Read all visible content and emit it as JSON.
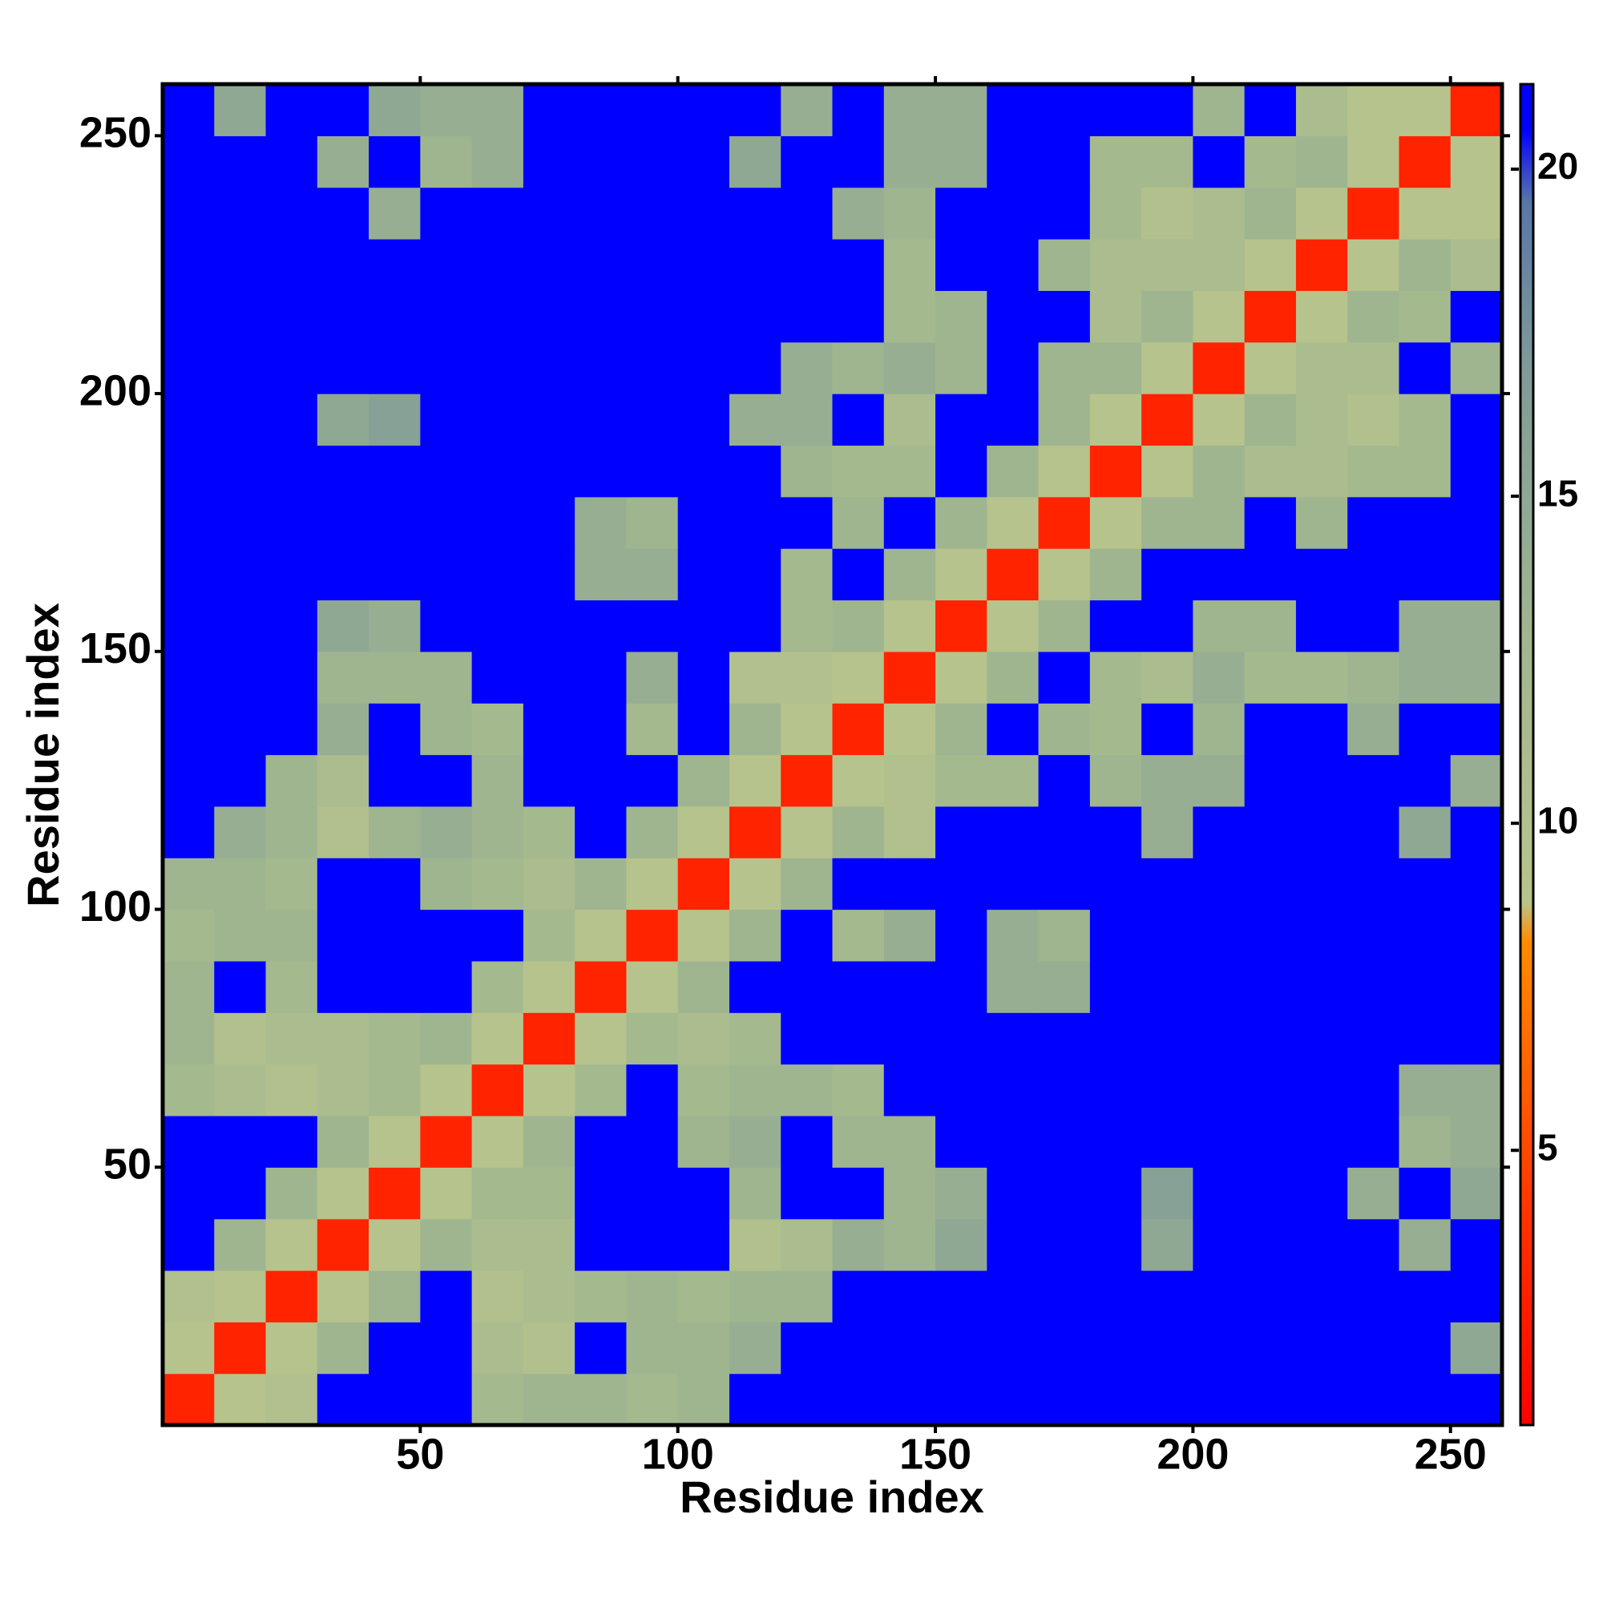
{
  "chart_data": {
    "type": "heatmap",
    "x_label": "Residue index",
    "y_label": "Residue index",
    "xlim": [
      0,
      260
    ],
    "ylim": [
      0,
      260
    ],
    "xticks": [
      50,
      100,
      150,
      200,
      250
    ],
    "yticks": [
      50,
      100,
      150,
      200,
      250
    ],
    "colorbar": {
      "clim": [
        0.8,
        21.3
      ],
      "ticks": [
        5,
        10,
        15,
        20
      ],
      "colorscale": [
        {
          "value": 0.8,
          "color": "#ff0000"
        },
        {
          "value": 4,
          "color": "#ff3300"
        },
        {
          "value": 8.2,
          "color": "#ff8c00"
        },
        {
          "value": 8.8,
          "color": "#b8c48c"
        },
        {
          "value": 13,
          "color": "#9fb590"
        },
        {
          "value": 17,
          "color": "#7f9a98"
        },
        {
          "value": 19.5,
          "color": "#5a76a8"
        },
        {
          "value": 20.6,
          "color": "#0000ff"
        },
        {
          "value": 21.3,
          "color": "#0000ff"
        }
      ]
    },
    "z": [
      [
        3,
        9,
        10,
        21,
        21,
        21,
        12,
        13,
        13,
        12,
        13,
        21,
        21,
        21,
        21,
        21,
        21,
        21,
        21,
        21,
        21,
        21,
        21,
        21,
        21,
        21
      ],
      [
        9,
        3,
        9,
        13,
        21,
        21,
        11,
        10,
        21,
        13,
        13,
        14,
        21,
        21,
        21,
        21,
        21,
        21,
        21,
        21,
        21,
        21,
        21,
        21,
        21,
        15
      ],
      [
        10,
        9,
        3,
        9,
        13,
        21,
        10,
        11,
        12,
        13,
        12,
        13,
        13,
        21,
        21,
        21,
        21,
        21,
        21,
        21,
        21,
        21,
        21,
        21,
        21,
        21
      ],
      [
        21,
        13,
        9,
        3,
        9,
        13,
        11,
        11,
        21,
        21,
        21,
        10,
        11,
        14,
        13,
        15,
        21,
        21,
        21,
        15,
        21,
        21,
        21,
        21,
        14,
        21
      ],
      [
        21,
        21,
        13,
        9,
        3,
        9,
        12,
        12,
        21,
        21,
        21,
        13,
        21,
        21,
        13,
        14,
        21,
        21,
        21,
        16,
        21,
        21,
        21,
        14,
        21,
        15
      ],
      [
        21,
        21,
        21,
        13,
        9,
        3,
        9,
        13,
        21,
        21,
        13,
        14,
        21,
        13,
        13,
        21,
        21,
        21,
        21,
        21,
        21,
        21,
        21,
        21,
        13,
        14
      ],
      [
        12,
        11,
        10,
        11,
        12,
        9,
        3,
        9,
        12,
        21,
        12,
        13,
        13,
        12,
        21,
        21,
        21,
        21,
        21,
        21,
        21,
        21,
        21,
        21,
        14,
        14
      ],
      [
        13,
        10,
        11,
        11,
        12,
        13,
        9,
        3,
        9,
        12,
        11,
        12,
        21,
        21,
        21,
        21,
        21,
        21,
        21,
        21,
        21,
        21,
        21,
        21,
        21,
        21
      ],
      [
        13,
        21,
        12,
        21,
        21,
        21,
        12,
        9,
        3,
        9,
        13,
        21,
        21,
        21,
        21,
        21,
        14,
        14,
        21,
        21,
        21,
        21,
        21,
        21,
        21,
        21
      ],
      [
        12,
        13,
        13,
        21,
        21,
        21,
        21,
        12,
        9,
        3,
        9,
        13,
        21,
        12,
        14,
        21,
        14,
        13,
        21,
        21,
        21,
        21,
        21,
        21,
        21,
        21
      ],
      [
        13,
        13,
        12,
        21,
        21,
        13,
        12,
        11,
        13,
        9,
        3,
        9,
        13,
        21,
        21,
        21,
        21,
        21,
        21,
        21,
        21,
        21,
        21,
        21,
        21,
        21
      ],
      [
        21,
        14,
        13,
        10,
        13,
        14,
        13,
        12,
        21,
        13,
        9,
        3,
        9,
        13,
        10,
        21,
        21,
        21,
        21,
        14,
        21,
        21,
        21,
        21,
        15,
        21
      ],
      [
        21,
        21,
        13,
        11,
        21,
        21,
        13,
        21,
        21,
        21,
        13,
        9,
        3,
        9,
        10,
        12,
        12,
        21,
        13,
        14,
        14,
        21,
        21,
        21,
        21,
        14
      ],
      [
        21,
        21,
        21,
        14,
        21,
        13,
        12,
        21,
        21,
        12,
        21,
        13,
        9,
        3,
        9,
        13,
        21,
        13,
        12,
        21,
        13,
        21,
        21,
        14,
        21,
        21
      ],
      [
        21,
        21,
        21,
        13,
        13,
        13,
        21,
        21,
        21,
        14,
        21,
        10,
        10,
        9,
        3,
        9,
        13,
        21,
        12,
        11,
        14,
        12,
        12,
        13,
        14,
        14
      ],
      [
        21,
        21,
        21,
        15,
        14,
        21,
        21,
        21,
        21,
        21,
        21,
        21,
        12,
        13,
        9,
        3,
        9,
        13,
        21,
        21,
        13,
        13,
        21,
        21,
        14,
        14
      ],
      [
        21,
        21,
        21,
        21,
        21,
        21,
        21,
        21,
        14,
        14,
        21,
        21,
        12,
        21,
        13,
        9,
        3,
        9,
        13,
        21,
        21,
        21,
        21,
        21,
        21,
        21
      ],
      [
        21,
        21,
        21,
        21,
        21,
        21,
        21,
        21,
        14,
        13,
        21,
        21,
        21,
        13,
        21,
        13,
        9,
        3,
        9,
        13,
        13,
        21,
        13,
        21,
        21,
        21
      ],
      [
        21,
        21,
        21,
        21,
        21,
        21,
        21,
        21,
        21,
        21,
        21,
        21,
        13,
        12,
        12,
        21,
        13,
        9,
        3,
        9,
        13,
        11,
        11,
        12,
        12,
        21
      ],
      [
        21,
        21,
        21,
        15,
        16,
        21,
        21,
        21,
        21,
        21,
        21,
        14,
        14,
        21,
        11,
        21,
        21,
        13,
        9,
        3,
        9,
        13,
        11,
        10,
        12,
        21
      ],
      [
        21,
        21,
        21,
        21,
        21,
        21,
        21,
        21,
        21,
        21,
        21,
        21,
        14,
        13,
        14,
        13,
        21,
        13,
        13,
        9,
        3,
        9,
        11,
        11,
        21,
        13
      ],
      [
        21,
        21,
        21,
        21,
        21,
        21,
        21,
        21,
        21,
        21,
        21,
        21,
        21,
        21,
        12,
        13,
        21,
        21,
        11,
        13,
        9,
        3,
        9,
        13,
        12,
        21
      ],
      [
        21,
        21,
        21,
        21,
        21,
        21,
        21,
        21,
        21,
        21,
        21,
        21,
        21,
        21,
        12,
        21,
        21,
        13,
        11,
        11,
        11,
        9,
        3,
        9,
        13,
        11
      ],
      [
        21,
        21,
        21,
        21,
        14,
        21,
        21,
        21,
        21,
        21,
        21,
        21,
        21,
        14,
        13,
        21,
        21,
        21,
        12,
        10,
        11,
        13,
        9,
        3,
        9,
        9
      ],
      [
        21,
        21,
        21,
        14,
        21,
        13,
        14,
        21,
        21,
        21,
        21,
        15,
        21,
        21,
        14,
        14,
        21,
        21,
        12,
        12,
        21,
        12,
        13,
        9,
        3,
        9
      ],
      [
        21,
        15,
        21,
        21,
        15,
        14,
        14,
        21,
        21,
        21,
        21,
        21,
        14,
        21,
        14,
        14,
        21,
        21,
        21,
        21,
        13,
        21,
        11,
        9,
        9,
        3
      ]
    ]
  }
}
